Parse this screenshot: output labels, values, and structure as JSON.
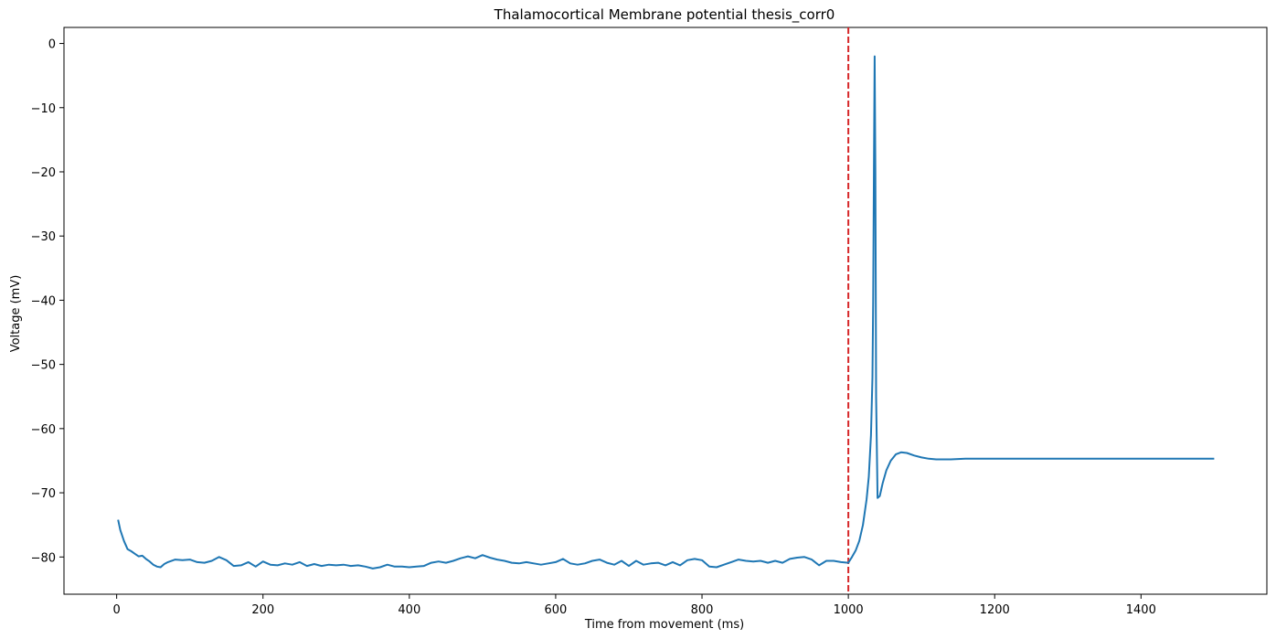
{
  "chart_data": {
    "type": "line",
    "title": "Thalamocortical Membrane potential  thesis_corr0",
    "xlabel": "Time from movement (ms)",
    "ylabel": "Voltage (mV)",
    "xlim": [
      -72,
      1572
    ],
    "ylim": [
      -85.8,
      2.5
    ],
    "xticks": [
      0,
      200,
      400,
      600,
      800,
      1000,
      1200,
      1400
    ],
    "yticks": [
      0,
      -10,
      -20,
      -30,
      -40,
      -50,
      -60,
      -70,
      -80
    ],
    "xtick_labels": [
      "0",
      "200",
      "400",
      "600",
      "800",
      "1000",
      "1200",
      "1400"
    ],
    "ytick_labels": [
      "0",
      "−10",
      "−20",
      "−30",
      "−40",
      "−50",
      "−60",
      "−70",
      "−80"
    ],
    "grid": false,
    "vline": {
      "x": 1000,
      "color": "#d62728",
      "style": "dashed"
    },
    "series": [
      {
        "color": "#1f77b4",
        "x": [
          2,
          5,
          10,
          15,
          20,
          25,
          30,
          35,
          40,
          45,
          50,
          55,
          60,
          65,
          70,
          80,
          90,
          100,
          110,
          120,
          130,
          140,
          150,
          160,
          170,
          180,
          190,
          200,
          210,
          220,
          230,
          240,
          250,
          260,
          270,
          280,
          290,
          300,
          310,
          320,
          330,
          340,
          350,
          360,
          370,
          380,
          390,
          400,
          410,
          420,
          430,
          440,
          450,
          460,
          470,
          480,
          490,
          500,
          510,
          520,
          530,
          540,
          550,
          560,
          570,
          580,
          590,
          600,
          610,
          620,
          630,
          640,
          650,
          660,
          670,
          680,
          690,
          700,
          710,
          720,
          730,
          740,
          750,
          760,
          770,
          780,
          790,
          800,
          810,
          820,
          830,
          840,
          850,
          860,
          870,
          880,
          890,
          900,
          910,
          920,
          930,
          940,
          950,
          960,
          970,
          980,
          990,
          1000,
          1005,
          1010,
          1015,
          1020,
          1025,
          1028,
          1031,
          1033,
          1034,
          1035,
          1036,
          1037,
          1038,
          1040,
          1043,
          1047,
          1052,
          1058,
          1065,
          1072,
          1080,
          1090,
          1100,
          1110,
          1120,
          1140,
          1160,
          1200,
          1300,
          1400,
          1500
        ],
        "y": [
          -74.2,
          -75.8,
          -77.5,
          -78.8,
          -79.1,
          -79.5,
          -79.9,
          -79.8,
          -80.3,
          -80.7,
          -81.2,
          -81.5,
          -81.6,
          -81.1,
          -80.8,
          -80.4,
          -80.5,
          -80.4,
          -80.8,
          -80.9,
          -80.6,
          -80.0,
          -80.5,
          -81.4,
          -81.3,
          -80.8,
          -81.5,
          -80.7,
          -81.2,
          -81.3,
          -81.0,
          -81.2,
          -80.8,
          -81.4,
          -81.1,
          -81.4,
          -81.2,
          -81.3,
          -81.2,
          -81.4,
          -81.3,
          -81.5,
          -81.8,
          -81.6,
          -81.2,
          -81.5,
          -81.5,
          -81.6,
          -81.5,
          -81.4,
          -80.9,
          -80.7,
          -80.9,
          -80.6,
          -80.2,
          -79.9,
          -80.2,
          -79.7,
          -80.1,
          -80.4,
          -80.6,
          -80.9,
          -81.0,
          -80.8,
          -81.0,
          -81.2,
          -81.0,
          -80.8,
          -80.3,
          -81.0,
          -81.2,
          -81.0,
          -80.6,
          -80.4,
          -80.9,
          -81.2,
          -80.6,
          -81.4,
          -80.6,
          -81.2,
          -81.0,
          -80.9,
          -81.3,
          -80.8,
          -81.3,
          -80.5,
          -80.3,
          -80.5,
          -81.5,
          -81.6,
          -81.2,
          -80.8,
          -80.4,
          -80.6,
          -80.7,
          -80.6,
          -80.9,
          -80.6,
          -80.9,
          -80.3,
          -80.1,
          -80.0,
          -80.4,
          -81.3,
          -80.6,
          -80.6,
          -80.8,
          -80.9,
          -80.0,
          -79.0,
          -77.5,
          -75.0,
          -71.0,
          -67.5,
          -61.0,
          -52.0,
          -40.0,
          -20.0,
          -2.0,
          -20.0,
          -55.0,
          -70.8,
          -70.5,
          -68.5,
          -66.5,
          -65.0,
          -64.0,
          -63.7,
          -63.8,
          -64.2,
          -64.5,
          -64.7,
          -64.8,
          -64.8,
          -64.7,
          -64.7,
          -64.7,
          -64.7,
          -64.7
        ]
      }
    ]
  }
}
